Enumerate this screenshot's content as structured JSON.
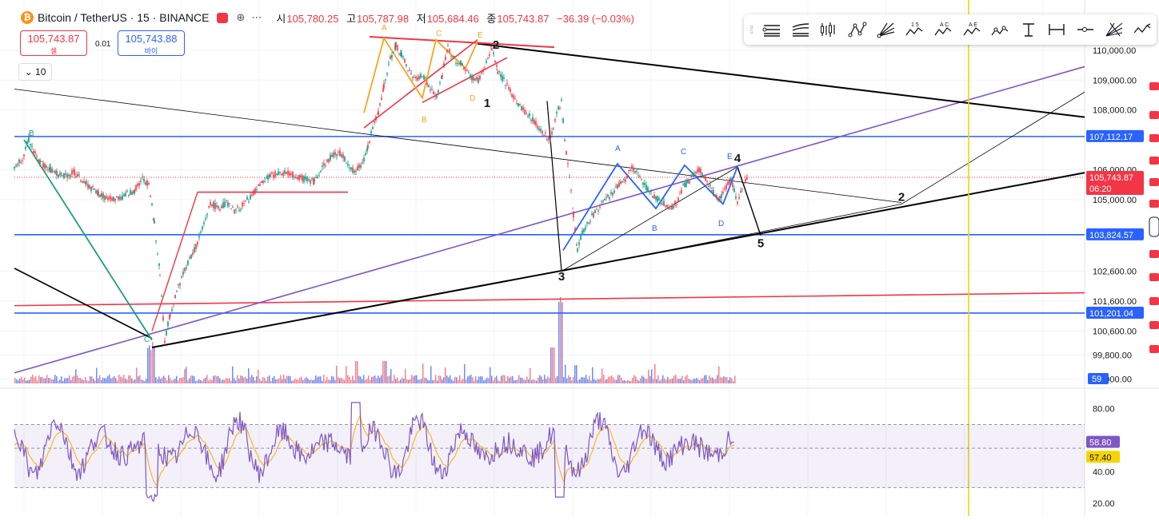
{
  "header": {
    "symbol": "Bitcoin / TetherUS · 15 · BINANCE",
    "ohlc": [
      {
        "key": "시",
        "value": "105,780.25"
      },
      {
        "key": "고",
        "value": "105,787.98"
      },
      {
        "key": "저",
        "value": "105,684.46"
      },
      {
        "key": "종",
        "value": "105,743.87"
      }
    ],
    "change": "−36.39 (−0.03%)",
    "coin_letter": "₿"
  },
  "trade": {
    "sell_price": "105,743.87",
    "sell_label": "셀",
    "buy_price": "105,743.88",
    "buy_label": "바이",
    "spread": "0.01",
    "lots": "10"
  },
  "colors": {
    "bull": "#089981",
    "bear": "#f23645",
    "purple": "#7e57c2",
    "blue_level": "#2962ff",
    "red_line": "#f23645",
    "orange": "#f7a51b",
    "teal": "#1e9e7e",
    "yellow": "#f5d400",
    "rsi": "#7e57c2",
    "rsi_ma": "#f7b72a"
  },
  "toolbar_icons": [
    "grip-icon",
    "pitchfork-icon",
    "schiff-pitchfork-icon",
    "candles-icon",
    "path-icon",
    "fan-icon",
    "xabcd-pattern-icon",
    "abcd-pattern-icon",
    "cypher-pattern-icon",
    "three-drives-icon",
    "anchored-line-icon",
    "date-range-icon",
    "horizontal-ray-icon",
    "gann-fan-icon",
    "elliott-wave-icon"
  ],
  "chart_data": [
    {
      "type": "line",
      "name": "price",
      "ylim": [
        98900,
        111200
      ],
      "yticks": [
        "110,000.00",
        "109,000.00",
        "108,000.00",
        "106,000.00",
        "105,000.00",
        "102,600.00",
        "101,600.00",
        "100,600.00",
        "99,800.00",
        "99,000.00"
      ],
      "ytick_values": [
        110000,
        109000,
        108000,
        106000,
        105000,
        102600,
        101600,
        100600,
        99800,
        99000
      ],
      "price_labels": [
        {
          "label": "107,112.17",
          "value": 107112.17,
          "color": "#2962ff"
        },
        {
          "label": "105,743.87",
          "value": 105743.87,
          "color": "#f23645",
          "countdown": "06:20"
        },
        {
          "label": "103,824.57",
          "value": 103824.57,
          "color": "#2962ff"
        },
        {
          "label": "101,201.04",
          "value": 101201.04,
          "color": "#2962ff"
        }
      ],
      "volume_label": "59",
      "path_points": [
        [
          0,
          106100
        ],
        [
          10,
          106400
        ],
        [
          18,
          107000
        ],
        [
          30,
          106300
        ],
        [
          45,
          106000
        ],
        [
          60,
          105800
        ],
        [
          75,
          105900
        ],
        [
          90,
          105500
        ],
        [
          105,
          105200
        ],
        [
          120,
          105000
        ],
        [
          135,
          105100
        ],
        [
          150,
          105300
        ],
        [
          160,
          105700
        ],
        [
          168,
          105500
        ],
        [
          175,
          104200
        ],
        [
          182,
          102500
        ],
        [
          188,
          100300
        ],
        [
          195,
          101200
        ],
        [
          205,
          102100
        ],
        [
          215,
          102800
        ],
        [
          225,
          103300
        ],
        [
          235,
          104000
        ],
        [
          245,
          104900
        ],
        [
          255,
          104700
        ],
        [
          265,
          104900
        ],
        [
          275,
          104600
        ],
        [
          285,
          104800
        ],
        [
          295,
          105100
        ],
        [
          305,
          105400
        ],
        [
          320,
          105800
        ],
        [
          340,
          105900
        ],
        [
          360,
          105700
        ],
        [
          375,
          105600
        ],
        [
          385,
          106100
        ],
        [
          395,
          106400
        ],
        [
          405,
          106600
        ],
        [
          415,
          106300
        ],
        [
          425,
          105900
        ],
        [
          435,
          106200
        ],
        [
          442,
          106800
        ],
        [
          448,
          107400
        ],
        [
          455,
          107900
        ],
        [
          462,
          108800
        ],
        [
          470,
          109700
        ],
        [
          477,
          110200
        ],
        [
          484,
          109800
        ],
        [
          492,
          109400
        ],
        [
          500,
          109000
        ],
        [
          510,
          109200
        ],
        [
          520,
          108700
        ],
        [
          528,
          108400
        ],
        [
          535,
          109200
        ],
        [
          542,
          110100
        ],
        [
          550,
          109700
        ],
        [
          560,
          109500
        ],
        [
          570,
          109100
        ],
        [
          580,
          109000
        ],
        [
          588,
          109400
        ],
        [
          597,
          110100
        ],
        [
          604,
          109300
        ],
        [
          612,
          109000
        ],
        [
          620,
          108600
        ],
        [
          630,
          108200
        ],
        [
          640,
          107900
        ],
        [
          650,
          107600
        ],
        [
          660,
          107300
        ],
        [
          670,
          107000
        ],
        [
          678,
          107900
        ],
        [
          684,
          108300
        ],
        [
          688,
          107000
        ],
        [
          694,
          105700
        ],
        [
          699,
          104500
        ],
        [
          704,
          103300
        ],
        [
          710,
          103900
        ],
        [
          716,
          104200
        ],
        [
          724,
          104500
        ],
        [
          732,
          104800
        ],
        [
          740,
          105000
        ],
        [
          748,
          105200
        ],
        [
          756,
          105500
        ],
        [
          764,
          105700
        ],
        [
          772,
          106100
        ],
        [
          780,
          105800
        ],
        [
          790,
          105400
        ],
        [
          800,
          105100
        ],
        [
          810,
          104900
        ],
        [
          820,
          104700
        ],
        [
          828,
          104900
        ],
        [
          836,
          105400
        ],
        [
          846,
          105700
        ],
        [
          856,
          106000
        ],
        [
          864,
          105700
        ],
        [
          872,
          105300
        ],
        [
          880,
          105000
        ],
        [
          888,
          105300
        ],
        [
          896,
          105700
        ],
        [
          904,
          104900
        ],
        [
          912,
          105500
        ],
        [
          918,
          105750
        ]
      ],
      "waves": [
        {
          "label": "1",
          "x": 609,
          "value": 108100
        },
        {
          "label": "2",
          "x": 620,
          "value": 110050
        },
        {
          "label": "3",
          "x": 702,
          "value": 102300
        },
        {
          "label": "4",
          "x": 922,
          "value": 106250
        },
        {
          "label": "5",
          "x": 951,
          "value": 103400
        },
        {
          "label": "2",
          "x": 1127,
          "value": 104950
        }
      ]
    },
    {
      "type": "line",
      "name": "rsi",
      "ylim": [
        15,
        90
      ],
      "yticks": [
        "80.00",
        "40.00",
        "20.00"
      ],
      "ytick_values": [
        80,
        40,
        20
      ],
      "bands": [
        70,
        55,
        30
      ],
      "value_label": "58.80",
      "ma_label": "57.40",
      "value": 58.8,
      "ma_value": 57.4
    }
  ]
}
